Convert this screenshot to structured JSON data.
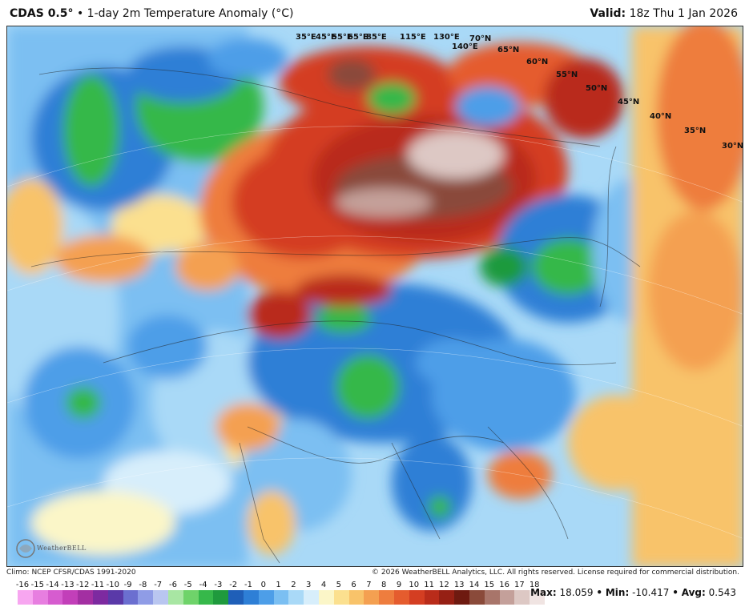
{
  "header": {
    "model": "CDAS 0.5°",
    "separator": "•",
    "product": "1-day 2m Temperature Anomaly (°C)",
    "valid_label": "Valid",
    "valid_value": "18z Thu 1 Jan 2026"
  },
  "map": {
    "region": "Asia",
    "lat_labels": [
      "70°N",
      "65°N",
      "60°N",
      "55°N",
      "50°N",
      "45°N",
      "40°N",
      "35°N",
      "30°N"
    ],
    "lon_labels": [
      "35°E",
      "45°E",
      "55°E",
      "65°E",
      "85°E",
      "115°E",
      "130°E",
      "140°E"
    ]
  },
  "footer": {
    "climo": "Climo: NCEP CFSR/CDAS 1991-2020",
    "copyright": "© 2026 WeatherBELL Analytics, LLC. All rights reserved. License required for commercial distribution.",
    "logo_text": "WeatherBELL"
  },
  "colorbar": {
    "labels": [
      "-16",
      "-15",
      "-14",
      "-13",
      "-12",
      "-11",
      "-10",
      "-9",
      "-8",
      "-7",
      "-6",
      "-5",
      "-4",
      "-3",
      "-2",
      "-1",
      "0",
      "1",
      "2",
      "3",
      "4",
      "5",
      "6",
      "7",
      "8",
      "9",
      "10",
      "11",
      "12",
      "13",
      "14",
      "15",
      "16",
      "17",
      "18"
    ],
    "colors": [
      "#f7a6f0",
      "#e77ee0",
      "#d65ccf",
      "#c23fb9",
      "#a32fa2",
      "#7d2aa0",
      "#5a39a8",
      "#6b6fd0",
      "#8f9ce6",
      "#b9c6f0",
      "#a8e6a3",
      "#6fd36a",
      "#36b84a",
      "#1f9a3d",
      "#1f5fb8",
      "#2e7fd6",
      "#4d9ee8",
      "#7bbff2",
      "#a9d9f7",
      "#d7eefb",
      "#fbf6c8",
      "#fbe08f",
      "#f8c36a",
      "#f4a051",
      "#ee7d3e",
      "#e55c2e",
      "#d43e22",
      "#b92c1a",
      "#962014",
      "#6e1a10",
      "#8a4a3a",
      "#a8756a",
      "#c4a09a",
      "#ddc8c4",
      "#f0e4e2"
    ]
  },
  "stats": {
    "max_label": "Max:",
    "max_value": "18.059",
    "min_label": "Min:",
    "min_value": "-10.417",
    "avg_label": "Avg:",
    "avg_value": "0.543",
    "sep": "•"
  }
}
